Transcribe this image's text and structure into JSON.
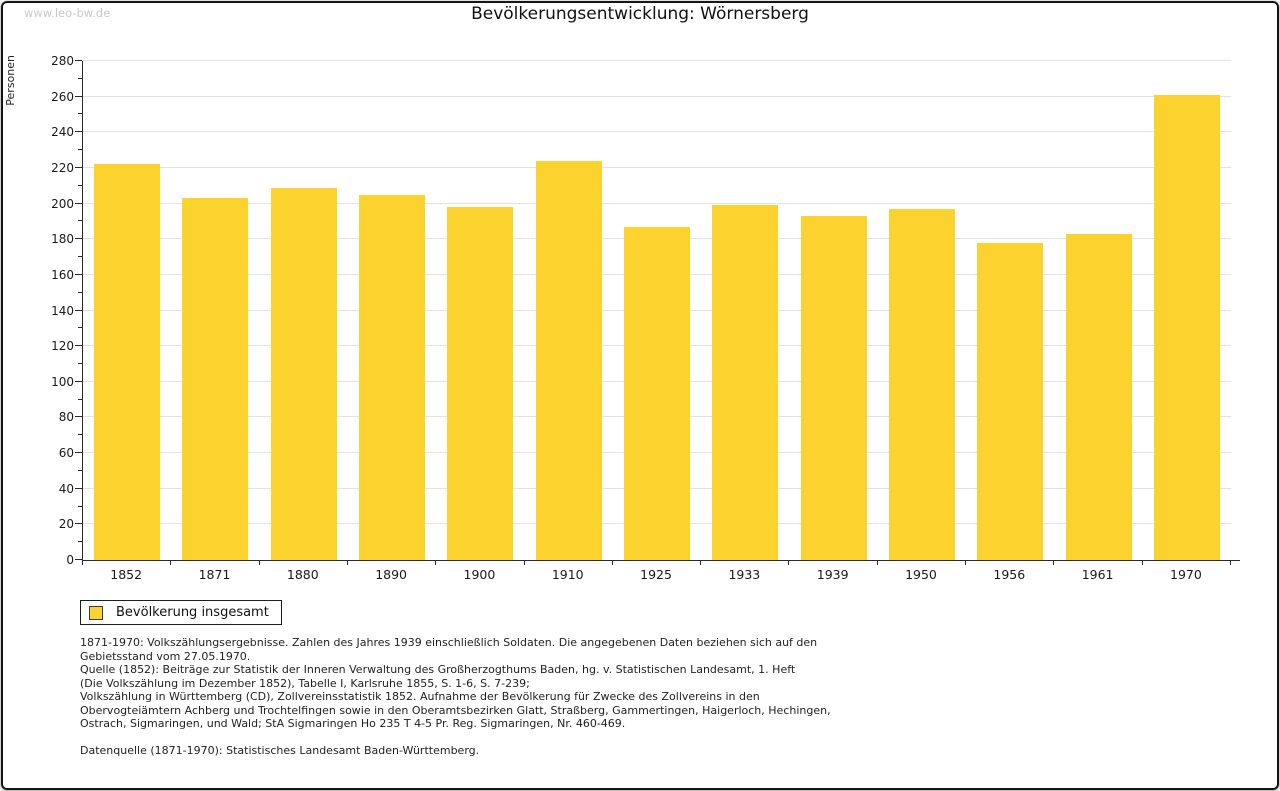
{
  "watermark": "www.leo-bw.de",
  "chart_data": {
    "type": "bar",
    "title": "Bevölkerungsentwicklung: Wörnersberg",
    "xlabel": "",
    "ylabel": "Personen",
    "ylim": [
      0,
      280
    ],
    "ytick_major": 20,
    "ytick_minor": 10,
    "grid": true,
    "legend_position": "bottom-left",
    "categories": [
      "1852",
      "1871",
      "1880",
      "1890",
      "1900",
      "1910",
      "1925",
      "1933",
      "1939",
      "1950",
      "1956",
      "1961",
      "1970"
    ],
    "series": [
      {
        "name": "Bevölkerung insgesamt",
        "values": [
          222,
          203,
          209,
          205,
          198,
          224,
          187,
          199,
          193,
          197,
          178,
          183,
          261
        ]
      }
    ],
    "bar_color": "#fcd32e"
  },
  "legend": {
    "label": "Bevölkerung insgesamt",
    "swatch_color": "#fcd32e"
  },
  "footnotes": [
    "1871-1970: Volkszählungsergebnisse. Zahlen des Jahres 1939 einschließlich Soldaten. Die angegebenen Daten beziehen sich auf den",
    "Gebietsstand vom 27.05.1970.",
    "Quelle (1852): Beiträge zur Statistik der Inneren Verwaltung des Großherzogthums Baden, hg. v. Statistischen Landesamt, 1. Heft",
    "(Die Volkszählung im Dezember 1852), Tabelle I, Karlsruhe 1855, S. 1-6, S. 7-239;",
    "Volkszählung in Württemberg (CD), Zollvereinsstatistik 1852. Aufnahme der Bevölkerung für Zwecke des Zollvereins in den",
    "Obervogteiämtern Achberg und Trochtelfingen sowie in den Oberamtsbezirken Glatt, Straßberg, Gammertingen, Haigerloch, Hechingen,",
    "Ostrach, Sigmaringen, und Wald; StA Sigmaringen Ho 235 T 4-5 Pr. Reg. Sigmaringen, Nr. 460-469."
  ],
  "datasource": "Datenquelle (1871-1970): Statistisches Landesamt Baden-Württemberg."
}
